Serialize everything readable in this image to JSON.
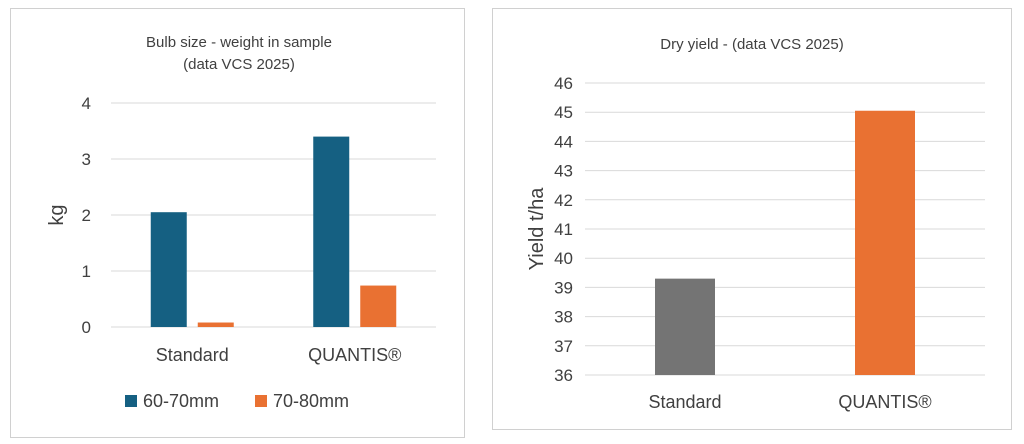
{
  "chart_data": [
    {
      "type": "bar",
      "title": "Bulb size - weight in sample",
      "subtitle": "(data VCS 2025)",
      "categories": [
        "Standard",
        "QUANTIS®"
      ],
      "series": [
        {
          "name": "60-70mm",
          "values": [
            2.05,
            3.4
          ],
          "color": "#156082"
        },
        {
          "name": "70-80mm",
          "values": [
            0.08,
            0.74
          ],
          "color": "#e97132"
        }
      ],
      "xlabel": "",
      "ylabel": "kg",
      "ylim": [
        0,
        4
      ],
      "yticks": [
        0,
        1,
        2,
        3,
        4
      ],
      "grid": true,
      "legend": "bottom"
    },
    {
      "type": "bar",
      "title": "Dry yield - (data VCS 2025)",
      "categories": [
        "Standard",
        "QUANTIS®"
      ],
      "series": [
        {
          "values": [
            39.3,
            45.05
          ],
          "colors": [
            "#747474",
            "#e97132"
          ]
        }
      ],
      "xlabel": "",
      "ylabel": "Yield t/ha",
      "ylim": [
        36,
        46
      ],
      "yticks": [
        36,
        37,
        38,
        39,
        40,
        41,
        42,
        43,
        44,
        45,
        46
      ],
      "grid": true,
      "legend": "none"
    }
  ]
}
